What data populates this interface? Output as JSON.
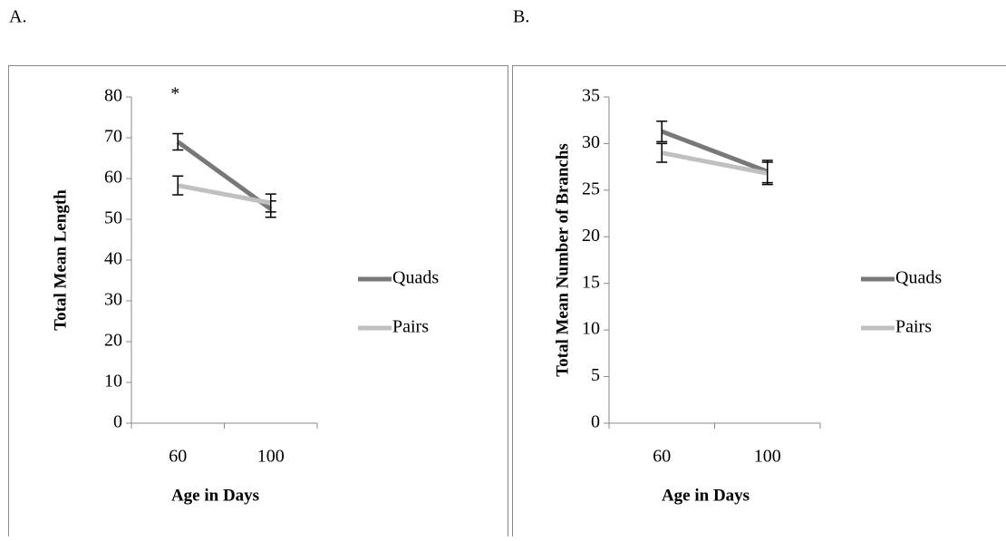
{
  "chart_data": [
    {
      "type": "line",
      "label": "A.",
      "annotation": "*",
      "x_label": "Age in Days",
      "y_label": "Total Mean Length",
      "categories": [
        "60",
        "100"
      ],
      "series": [
        {
          "name": "Quads",
          "color": "#787878",
          "values": [
            69,
            52.5
          ],
          "errors": [
            2,
            2
          ]
        },
        {
          "name": "Pairs",
          "color": "#c0c0c0",
          "values": [
            58.3,
            54
          ],
          "errors": [
            2.3,
            2.2
          ]
        }
      ],
      "ylim": [
        0,
        80
      ],
      "yticks": [
        0,
        10,
        20,
        30,
        40,
        50,
        60,
        70,
        80
      ],
      "grid": false,
      "legend": "right"
    },
    {
      "type": "line",
      "label": "B.",
      "x_label": "Age in Days",
      "y_label": "Total Mean Number of Branchs",
      "categories": [
        "60",
        "100"
      ],
      "series": [
        {
          "name": "Quads",
          "color": "#787878",
          "values": [
            31.3,
            27
          ],
          "errors": [
            1.1,
            1.2
          ]
        },
        {
          "name": "Pairs",
          "color": "#c0c0c0",
          "values": [
            29,
            26.8
          ],
          "errors": [
            1,
            1.2
          ]
        }
      ],
      "ylim": [
        0,
        35
      ],
      "yticks": [
        0,
        5,
        10,
        15,
        20,
        25,
        30,
        35
      ],
      "grid": false,
      "legend": "right"
    }
  ]
}
